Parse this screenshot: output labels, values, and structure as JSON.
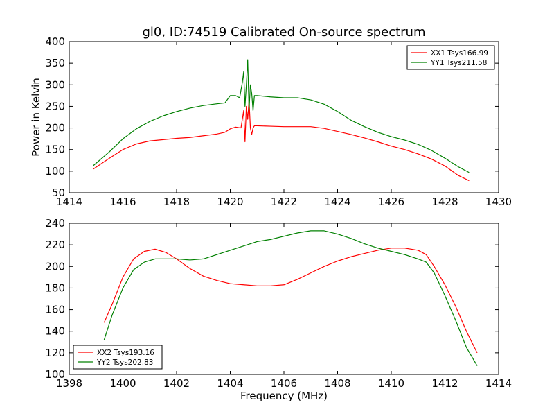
{
  "figure": {
    "title": "gl0, ID:74519 Calibrated On-source spectrum"
  },
  "chart_data": [
    {
      "type": "line",
      "title": "gl0, ID:74519 Calibrated On-source spectrum",
      "xlabel": "",
      "ylabel": "Power in Kelvin",
      "xlim": [
        1414,
        1430
      ],
      "ylim": [
        50,
        400
      ],
      "xticks": [
        "1414",
        "1416",
        "1418",
        "1420",
        "1422",
        "1424",
        "1426",
        "1428",
        "1430"
      ],
      "yticks": [
        "50",
        "100",
        "150",
        "200",
        "250",
        "300",
        "350",
        "400"
      ],
      "grid": false,
      "legend_position": "top-right",
      "series": [
        {
          "name": "XX1 Tsys166.99",
          "color": "#ff0000",
          "x": [
            1414.9,
            1415.5,
            1416.0,
            1416.5,
            1417.0,
            1417.5,
            1418.0,
            1418.5,
            1419.0,
            1419.5,
            1419.8,
            1420.0,
            1420.2,
            1420.4,
            1420.5,
            1420.55,
            1420.6,
            1420.65,
            1420.7,
            1420.75,
            1420.8,
            1420.85,
            1420.9,
            1421.0,
            1421.5,
            1422.0,
            1422.5,
            1423.0,
            1423.5,
            1424.0,
            1424.5,
            1425.0,
            1425.5,
            1426.0,
            1426.5,
            1427.0,
            1427.5,
            1428.0,
            1428.5,
            1428.9
          ],
          "y": [
            105,
            130,
            150,
            163,
            170,
            173,
            176,
            178,
            182,
            186,
            190,
            198,
            202,
            200,
            240,
            168,
            250,
            220,
            265,
            200,
            185,
            200,
            205,
            205,
            204,
            203,
            203,
            203,
            199,
            192,
            185,
            177,
            168,
            158,
            150,
            140,
            128,
            112,
            90,
            78
          ]
        },
        {
          "name": "YY1 Tsys211.58",
          "color": "#008000",
          "x": [
            1414.9,
            1415.5,
            1416.0,
            1416.5,
            1417.0,
            1417.5,
            1418.0,
            1418.5,
            1419.0,
            1419.5,
            1419.8,
            1420.0,
            1420.2,
            1420.35,
            1420.45,
            1420.5,
            1420.55,
            1420.6,
            1420.65,
            1420.7,
            1420.75,
            1420.8,
            1420.85,
            1420.9,
            1421.0,
            1421.5,
            1422.0,
            1422.5,
            1423.0,
            1423.5,
            1424.0,
            1424.5,
            1425.0,
            1425.5,
            1426.0,
            1426.5,
            1427.0,
            1427.5,
            1428.0,
            1428.5,
            1428.9
          ],
          "y": [
            113,
            145,
            175,
            198,
            215,
            228,
            238,
            246,
            252,
            256,
            258,
            275,
            275,
            270,
            305,
            330,
            250,
            300,
            358,
            240,
            300,
            280,
            240,
            275,
            275,
            272,
            270,
            270,
            265,
            255,
            238,
            218,
            203,
            190,
            180,
            172,
            162,
            148,
            130,
            110,
            97
          ]
        }
      ]
    },
    {
      "type": "line",
      "title": "",
      "xlabel": "Frequency (MHz)",
      "ylabel": "",
      "xlim": [
        1398,
        1414
      ],
      "ylim": [
        100,
        240
      ],
      "xticks": [
        "1398",
        "1400",
        "1402",
        "1404",
        "1406",
        "1408",
        "1410",
        "1412",
        "1414"
      ],
      "yticks": [
        "100",
        "120",
        "140",
        "160",
        "180",
        "200",
        "220",
        "240"
      ],
      "grid": false,
      "legend_position": "bottom-left",
      "series": [
        {
          "name": "XX2 Tsys193.16",
          "color": "#ff0000",
          "x": [
            1399.3,
            1399.6,
            1400.0,
            1400.4,
            1400.8,
            1401.2,
            1401.6,
            1402.0,
            1402.5,
            1403.0,
            1403.5,
            1404.0,
            1404.5,
            1405.0,
            1405.5,
            1406.0,
            1406.5,
            1407.0,
            1407.5,
            1408.0,
            1408.5,
            1409.0,
            1409.5,
            1410.0,
            1410.5,
            1411.0,
            1411.3,
            1411.6,
            1412.0,
            1412.4,
            1412.8,
            1413.2
          ],
          "y": [
            148,
            165,
            190,
            207,
            214,
            216,
            213,
            207,
            198,
            191,
            187,
            184,
            183,
            182,
            182,
            183,
            188,
            194,
            200,
            205,
            209,
            212,
            215,
            217,
            217,
            215,
            211,
            200,
            183,
            163,
            140,
            120
          ]
        },
        {
          "name": "YY2 Tsys202.83",
          "color": "#008000",
          "x": [
            1399.3,
            1399.6,
            1400.0,
            1400.4,
            1400.8,
            1401.2,
            1401.6,
            1402.0,
            1402.5,
            1403.0,
            1403.5,
            1404.0,
            1404.5,
            1405.0,
            1405.5,
            1406.0,
            1406.5,
            1407.0,
            1407.5,
            1408.0,
            1408.5,
            1409.0,
            1409.5,
            1410.0,
            1410.5,
            1411.0,
            1411.3,
            1411.6,
            1412.0,
            1412.4,
            1412.8,
            1413.2
          ],
          "y": [
            132,
            155,
            180,
            197,
            204,
            207,
            207,
            207,
            206,
            207,
            211,
            215,
            219,
            223,
            225,
            228,
            231,
            233,
            233,
            230,
            226,
            221,
            217,
            214,
            211,
            207,
            204,
            194,
            173,
            150,
            125,
            108
          ]
        }
      ]
    }
  ]
}
